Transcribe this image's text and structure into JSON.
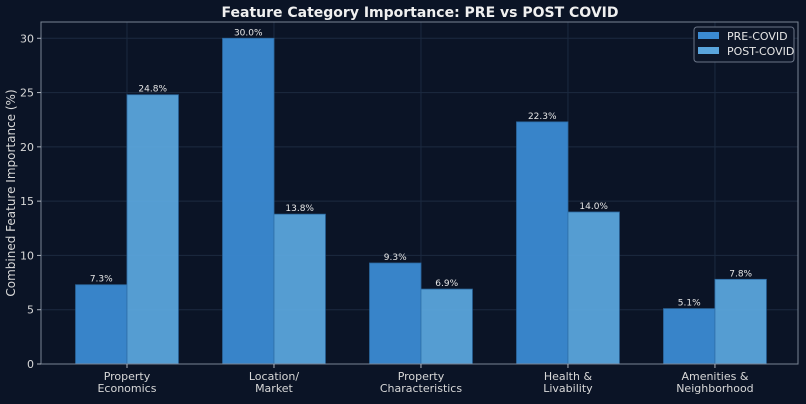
{
  "chart_data": {
    "type": "bar",
    "title": "Feature Category Importance: PRE vs POST COVID",
    "xlabel": "",
    "ylabel": "Combined Feature Importance (%)",
    "ylim": [
      0,
      31.5
    ],
    "yticks": [
      0,
      5,
      10,
      15,
      20,
      25,
      30
    ],
    "grid": true,
    "legend_position": "top-right",
    "categories": [
      [
        "Property",
        "Economics"
      ],
      [
        "Location/",
        "Market"
      ],
      [
        "Property",
        "Characteristics"
      ],
      [
        "Health &",
        "Livability"
      ],
      [
        "Amenities &",
        "Neighborhood"
      ]
    ],
    "series": [
      {
        "name": "PRE-COVID",
        "color": "#3b8ad2",
        "values": [
          7.3,
          30.0,
          9.3,
          22.3,
          5.1
        ],
        "labels": [
          "7.3%",
          "30.0%",
          "9.3%",
          "22.3%",
          "5.1%"
        ]
      },
      {
        "name": "POST-COVID",
        "color": "#5aa5dc",
        "values": [
          24.8,
          13.8,
          6.9,
          14.0,
          7.8
        ],
        "labels": [
          "24.8%",
          "13.8%",
          "6.9%",
          "14.0%",
          "7.8%"
        ]
      }
    ]
  }
}
